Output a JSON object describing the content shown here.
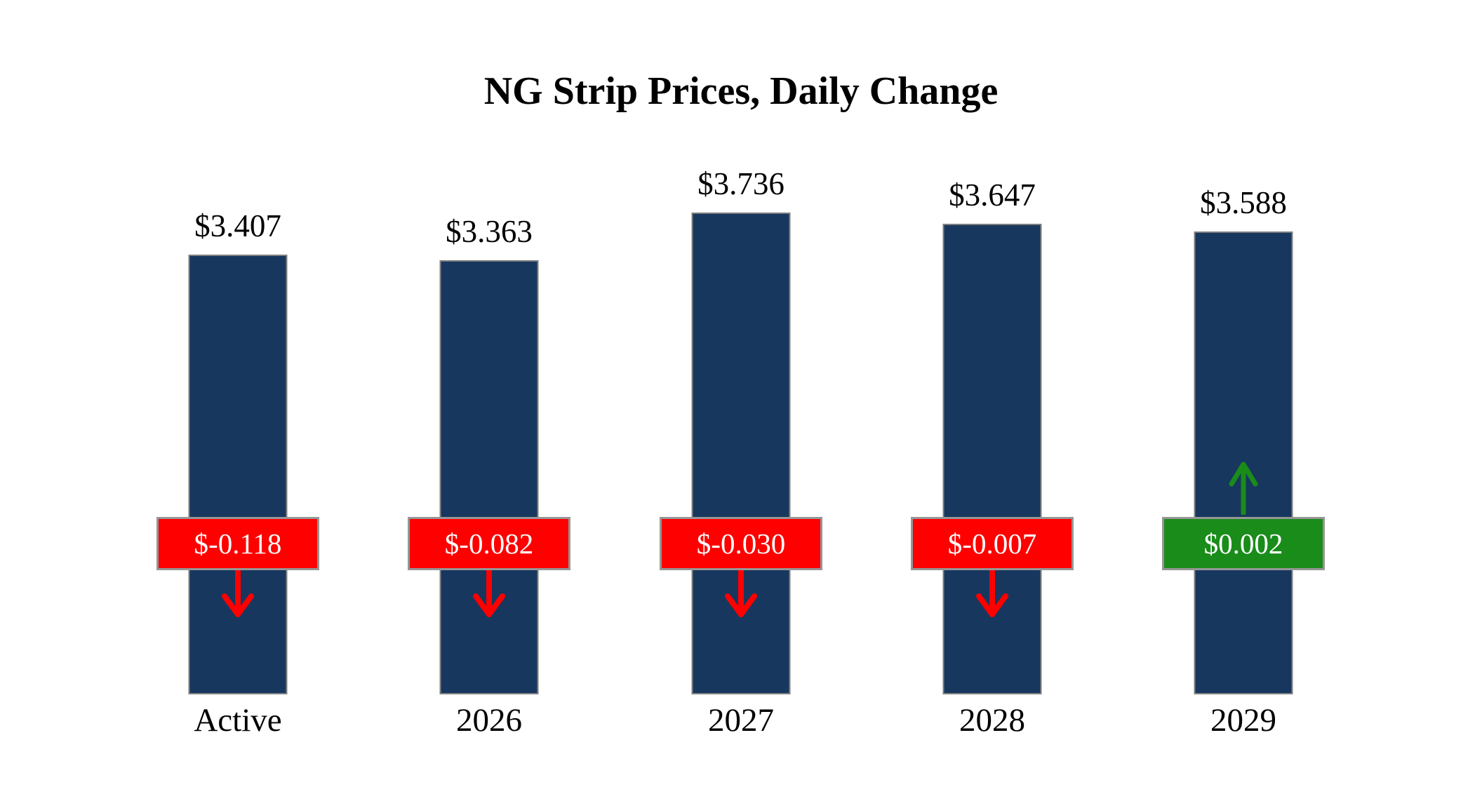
{
  "page": {
    "background": "#FFFFFF"
  },
  "chart_data": {
    "type": "bar",
    "title": "NG Strip Prices, Daily Change",
    "xlabel": "",
    "ylabel": "",
    "categories": [
      "Active",
      "2026",
      "2027",
      "2028",
      "2029"
    ],
    "values": [
      3.407,
      3.363,
      3.736,
      3.647,
      3.588
    ],
    "changes": [
      -0.118,
      -0.082,
      -0.03,
      -0.007,
      0.002
    ],
    "ylim": [
      0,
      4.2
    ],
    "grid": false,
    "legend": "none",
    "bar_color": "#17375E",
    "bar_border_color": "#808080",
    "negative_color": "#FF0000",
    "positive_color": "#1A8C1A",
    "bars": [
      {
        "category": "Active",
        "value": 3.407,
        "price_label": "$3.407",
        "change": -0.118,
        "change_label": "$-0.118",
        "direction": "down"
      },
      {
        "category": "2026",
        "value": 3.363,
        "price_label": "$3.363",
        "change": -0.082,
        "change_label": "$-0.082",
        "direction": "down"
      },
      {
        "category": "2027",
        "value": 3.736,
        "price_label": "$3.736",
        "change": -0.03,
        "change_label": "$-0.030",
        "direction": "down"
      },
      {
        "category": "2028",
        "value": 3.647,
        "price_label": "$3.647",
        "change": -0.007,
        "change_label": "$-0.007",
        "direction": "down"
      },
      {
        "category": "2029",
        "value": 3.588,
        "price_label": "$3.588",
        "change": 0.002,
        "change_label": "$0.002",
        "direction": "up"
      }
    ]
  }
}
